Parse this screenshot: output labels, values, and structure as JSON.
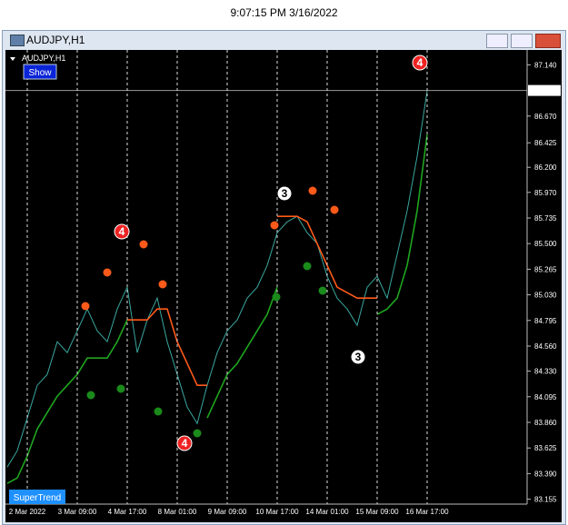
{
  "timestamp": "9:07:15 PM 3/16/2022",
  "window": {
    "title": "AUDJPY,H1"
  },
  "chart_label": "AUDJPY,H1",
  "button": "Show",
  "indicator": "SuperTrend",
  "chart_data": {
    "type": "line",
    "categories": [
      null,
      null,
      "2 Mar 2022",
      null,
      null,
      null,
      null,
      "3 Mar 09:00",
      null,
      null,
      null,
      null,
      "4 Mar 17:00",
      null,
      null,
      null,
      null,
      "8 Mar 01:00",
      null,
      null,
      null,
      null,
      "9 Mar 09:00",
      null,
      null,
      null,
      null,
      "10 Mar 17:00",
      null,
      null,
      null,
      null,
      "14 Mar 01:00",
      null,
      null,
      null,
      null,
      "15 Mar 09:00",
      null,
      null,
      null,
      null,
      "16 Mar 17:00"
    ],
    "series": [
      {
        "name": "AUDJPY",
        "color": "#3aa7a0",
        "values": [
          83.45,
          83.6,
          83.9,
          84.2,
          84.3,
          84.6,
          84.5,
          84.7,
          84.9,
          84.7,
          84.6,
          84.9,
          85.1,
          84.5,
          84.8,
          85.0,
          84.6,
          84.3,
          84.0,
          83.85,
          84.2,
          84.5,
          84.7,
          84.8,
          85.0,
          85.1,
          85.3,
          85.6,
          85.7,
          85.75,
          85.6,
          85.5,
          85.2,
          85.0,
          84.9,
          84.75,
          85.1,
          85.2,
          85.0,
          85.4,
          85.8,
          86.3,
          86.9
        ]
      },
      {
        "name": "SuperTrend Up",
        "color": "#1fa51f",
        "values": [
          83.3,
          83.35,
          83.55,
          83.8,
          83.95,
          84.1,
          84.2,
          84.3,
          84.45,
          84.45,
          84.45,
          84.6,
          84.8,
          null,
          null,
          null,
          null,
          null,
          null,
          null,
          83.9,
          84.1,
          84.3,
          84.4,
          84.55,
          84.7,
          84.85,
          85.1,
          null,
          null,
          null,
          null,
          null,
          null,
          null,
          null,
          null,
          84.85,
          84.9,
          85.0,
          85.3,
          85.8,
          86.5
        ]
      },
      {
        "name": "SuperTrend Down",
        "color": "#ff5a1a",
        "values": [
          null,
          null,
          null,
          null,
          null,
          null,
          null,
          null,
          null,
          null,
          null,
          null,
          84.8,
          84.8,
          84.8,
          84.9,
          84.9,
          84.6,
          84.4,
          84.2,
          84.2,
          null,
          null,
          null,
          null,
          null,
          null,
          85.75,
          85.75,
          85.75,
          85.7,
          85.5,
          85.3,
          85.1,
          85.05,
          85.0,
          85.0,
          85.0,
          null,
          null,
          null,
          null,
          null
        ]
      }
    ],
    "ylim": [
      83.11,
      87.26
    ],
    "yticks": [
      {
        "value": 87.14,
        "label": "87.140"
      },
      {
        "value": 86.67,
        "label": "86.670"
      },
      86.425,
      {
        "value": 86.2,
        "label": "86.200"
      },
      {
        "value": 85.97,
        "label": "85.970"
      },
      85.735,
      {
        "value": 85.5,
        "label": "85.500"
      },
      85.265,
      {
        "value": 85.03,
        "label": "85.030"
      },
      84.795,
      {
        "value": 84.56,
        "label": "84.560"
      },
      {
        "value": 84.33,
        "label": "84.330"
      },
      84.095,
      {
        "value": 83.86,
        "label": "83.860"
      },
      83.625,
      {
        "value": 83.39,
        "label": "83.390"
      },
      83.155
    ],
    "current_price": {
      "value": 86.905,
      "label": "86.905"
    },
    "annotations": [
      "4",
      "4",
      "4",
      "3",
      "3"
    ]
  }
}
